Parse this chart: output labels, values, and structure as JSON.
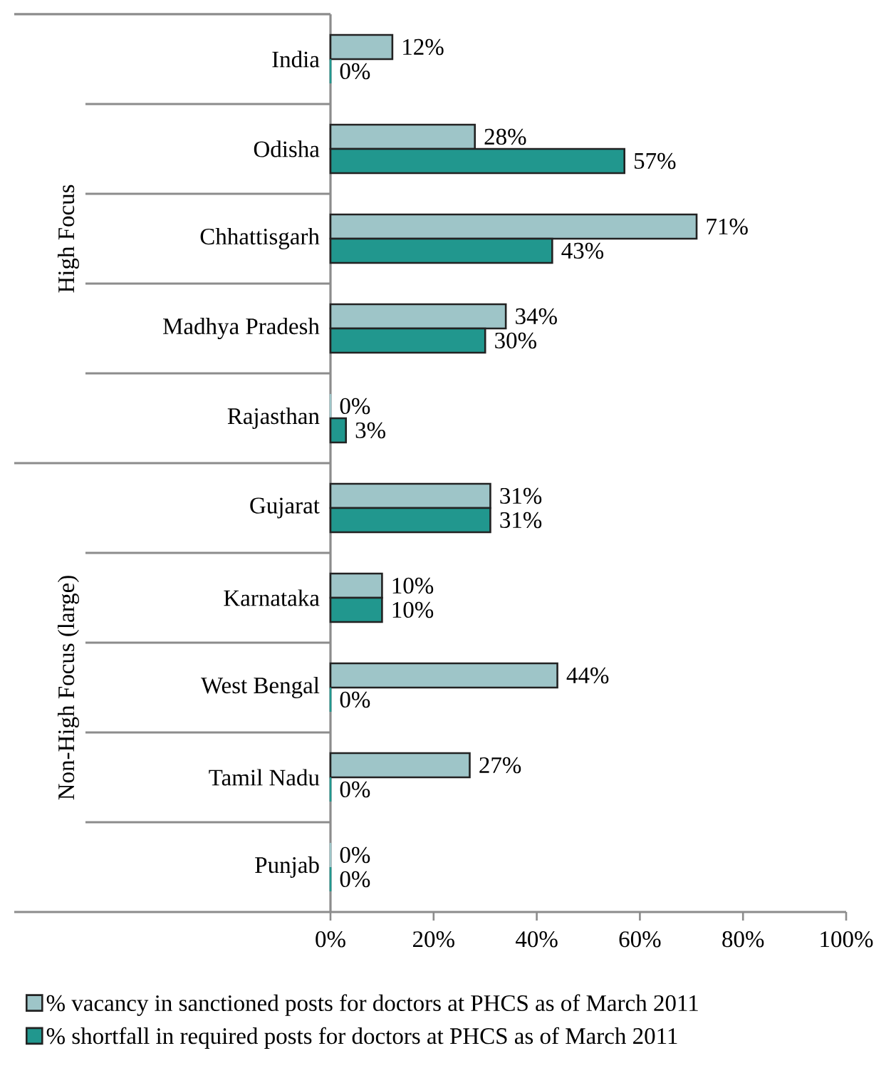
{
  "chart_data": {
    "type": "bar",
    "orientation": "horizontal",
    "categories": [
      "India",
      "Odisha",
      "Chhattisgarh",
      "Madhya Pradesh",
      "Rajasthan",
      "Gujarat",
      "Karnataka",
      "West Bengal",
      "Tamil Nadu",
      "Punjab"
    ],
    "series": [
      {
        "name": "% vacancy in sanctioned posts for doctors at PHCS as of March 2011",
        "color": "#9ec5c8",
        "values": [
          12,
          28,
          71,
          34,
          0,
          31,
          10,
          44,
          27,
          0
        ],
        "value_labels": [
          "12%",
          "28%",
          "71%",
          "34%",
          "0%",
          "31%",
          "10%",
          "44%",
          "27%",
          "0%"
        ]
      },
      {
        "name": "% shortfall in required posts for doctors at PHCS as of March 2011",
        "color": "#21978e",
        "values": [
          0,
          57,
          43,
          30,
          3,
          31,
          10,
          0,
          0,
          0
        ],
        "value_labels": [
          "0%",
          "57%",
          "43%",
          "30%",
          "3%",
          "31%",
          "10%",
          "0%",
          "0%",
          "0%"
        ]
      }
    ],
    "xlim": [
      0,
      100
    ],
    "xticks": [
      {
        "value": 0,
        "label": "0%"
      },
      {
        "value": 20,
        "label": "20%"
      },
      {
        "value": 40,
        "label": "40%"
      },
      {
        "value": 60,
        "label": "60%"
      },
      {
        "value": 80,
        "label": "80%"
      },
      {
        "value": 100,
        "label": "100%"
      }
    ],
    "annotations": [
      "High Focus",
      "Non-High Focus (large)"
    ],
    "grid": false,
    "legend": "bottom"
  }
}
